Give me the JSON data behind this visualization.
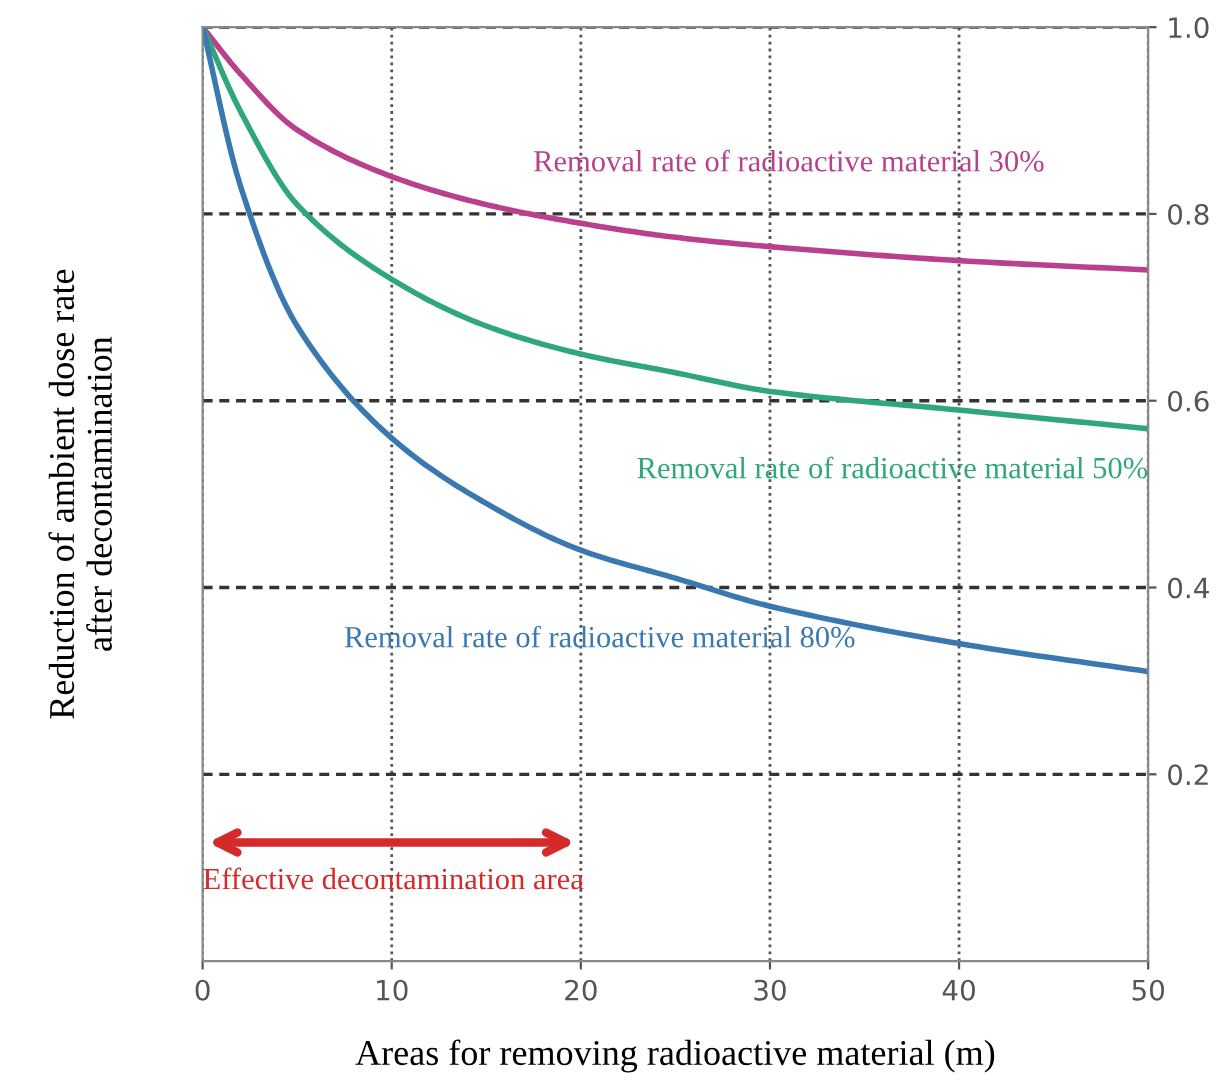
{
  "chart_data": {
    "type": "line",
    "xlabel": "Areas for removing radioactive material (m)",
    "ylabel": "Reduction of ambient dose rate\nafter decontamination",
    "x": [
      0,
      2,
      5,
      10,
      15,
      20,
      25,
      30,
      40,
      50
    ],
    "series": [
      {
        "name": "Removal rate of radioactive material 30%",
        "color": "#b8408c",
        "values": [
          1.0,
          0.95,
          0.89,
          0.84,
          0.81,
          0.79,
          0.775,
          0.765,
          0.75,
          0.74
        ]
      },
      {
        "name": "Removal rate of radioactive material 50%",
        "color": "#2fa77a",
        "values": [
          1.0,
          0.91,
          0.81,
          0.73,
          0.68,
          0.65,
          0.63,
          0.61,
          0.59,
          0.57
        ]
      },
      {
        "name": "Removal rate of radioactive material 80%",
        "color": "#3a78b0",
        "values": [
          1.0,
          0.83,
          0.68,
          0.56,
          0.49,
          0.44,
          0.41,
          0.38,
          0.34,
          0.31
        ]
      }
    ],
    "xlim": [
      0,
      50
    ],
    "ylim": [
      0,
      1.0
    ],
    "xticks": [
      0,
      10,
      20,
      30,
      40,
      50
    ],
    "yticks": [
      0.2,
      0.4,
      0.6,
      0.8,
      {
        "value": 1.0,
        "label": "1.0"
      }
    ],
    "annotations": [
      "Effective decontamination area"
    ],
    "grid": true,
    "legend": false,
    "marker": "none",
    "line_style": "solid"
  }
}
